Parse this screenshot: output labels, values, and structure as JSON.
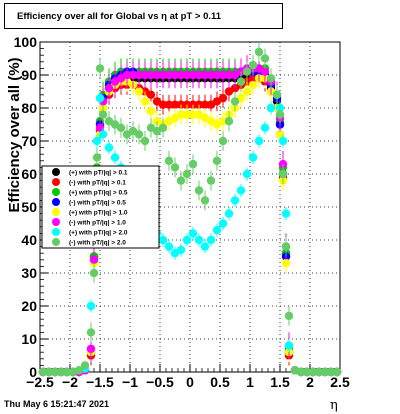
{
  "title": "Efficiency over all for Global vs   η at pT > 0.11",
  "footer": "Thu May  6 15:21:47 2021",
  "chart_data": {
    "type": "scatter",
    "title": "Efficiency over all for Global vs   η at pT > 0.11",
    "xlabel": "η",
    "ylabel": "Efficiency over all (%)",
    "xlim": [
      -2.5,
      2.5
    ],
    "ylim": [
      0,
      100
    ],
    "xticks": [
      "−2.5",
      "−2",
      "−1.5",
      "−1",
      "−0.5",
      "0",
      "0.5",
      "1",
      "1.5",
      "2",
      "2.5"
    ],
    "yticks": [
      "0",
      "10",
      "20",
      "30",
      "40",
      "50",
      "60",
      "70",
      "80",
      "90",
      "100"
    ],
    "grid": true,
    "legend_position": "left-middle",
    "series": [
      {
        "name": "(+) with pT/|q| > 0.1",
        "color": "#000000",
        "x": [
          -2.45,
          -2.35,
          -2.25,
          -2.15,
          -2.05,
          -1.95,
          -1.85,
          -1.75,
          -1.65,
          -1.6,
          -1.55,
          -1.5,
          -1.45,
          -1.35,
          -1.25,
          -1.15,
          -1.05,
          -0.95,
          -0.85,
          -0.75,
          -0.65,
          -0.55,
          -0.45,
          -0.35,
          -0.25,
          -0.15,
          -0.05,
          0.05,
          0.15,
          0.25,
          0.35,
          0.45,
          0.55,
          0.65,
          0.75,
          0.85,
          0.95,
          1.05,
          1.15,
          1.25,
          1.35,
          1.45,
          1.5,
          1.55,
          1.6,
          1.65,
          1.75,
          1.85,
          1.95,
          2.05,
          2.15,
          2.25,
          2.35,
          2.45
        ],
        "y": [
          0,
          0,
          0,
          0,
          0,
          0,
          0,
          0.5,
          6,
          35,
          60,
          75,
          82,
          86,
          88,
          89,
          89,
          89,
          89,
          89,
          89,
          89,
          89,
          89,
          89,
          89,
          89,
          89,
          89,
          89,
          89,
          89,
          89,
          89,
          89,
          89,
          89,
          89,
          89,
          89,
          86,
          82,
          75,
          60,
          36,
          6,
          0.5,
          0,
          0,
          0,
          0,
          0,
          0,
          0
        ]
      },
      {
        "name": "(-) with pT/|q| > 0.1",
        "color": "#ff0000",
        "x": [
          -2.45,
          -2.35,
          -2.25,
          -2.15,
          -2.05,
          -1.95,
          -1.85,
          -1.75,
          -1.65,
          -1.6,
          -1.55,
          -1.5,
          -1.45,
          -1.35,
          -1.25,
          -1.15,
          -1.05,
          -0.95,
          -0.85,
          -0.75,
          -0.65,
          -0.55,
          -0.45,
          -0.35,
          -0.25,
          -0.15,
          -0.05,
          0.05,
          0.15,
          0.25,
          0.35,
          0.45,
          0.55,
          0.65,
          0.75,
          0.85,
          0.95,
          1.05,
          1.15,
          1.25,
          1.35,
          1.45,
          1.5,
          1.55,
          1.6,
          1.65,
          1.75,
          1.85,
          1.95,
          2.05,
          2.15,
          2.25,
          2.35,
          2.45
        ],
        "y": [
          0,
          0,
          0,
          0,
          0,
          0,
          0,
          0.5,
          5,
          35,
          60,
          73,
          80,
          84,
          86,
          87,
          87,
          87,
          86,
          85,
          84,
          82,
          81,
          81,
          81,
          81,
          81,
          81,
          81,
          81,
          81,
          82,
          83,
          85,
          86,
          87,
          88,
          89,
          89,
          88,
          85,
          80,
          72,
          59,
          35,
          5,
          0.5,
          0,
          0,
          0,
          0,
          0,
          0,
          0
        ]
      },
      {
        "name": "(+) with pT/|q| > 0.5",
        "color": "#00cc00",
        "x": [
          -2.45,
          -2.35,
          -2.25,
          -2.15,
          -2.05,
          -1.95,
          -1.85,
          -1.75,
          -1.65,
          -1.6,
          -1.55,
          -1.5,
          -1.45,
          -1.35,
          -1.25,
          -1.15,
          -1.05,
          -0.95,
          -0.85,
          -0.75,
          -0.65,
          -0.55,
          -0.45,
          -0.35,
          -0.25,
          -0.15,
          -0.05,
          0.05,
          0.15,
          0.25,
          0.35,
          0.45,
          0.55,
          0.65,
          0.75,
          0.85,
          0.95,
          1.05,
          1.15,
          1.25,
          1.35,
          1.45,
          1.5,
          1.55,
          1.6,
          1.65,
          1.75,
          1.85,
          1.95,
          2.05,
          2.15,
          2.25,
          2.35,
          2.45
        ],
        "y": [
          0,
          0,
          0,
          0,
          0,
          0,
          0,
          0.5,
          7,
          35,
          62,
          76,
          84,
          88,
          90,
          91,
          91,
          91,
          91,
          91,
          91,
          91,
          91,
          91,
          91,
          91,
          91,
          91,
          91,
          91,
          91,
          91,
          91,
          91,
          91,
          91,
          91,
          91,
          92,
          92,
          88,
          84,
          76,
          62,
          36,
          7,
          0.5,
          0,
          0,
          0,
          0,
          0,
          0,
          0
        ]
      },
      {
        "name": "(-) with pT/|q| > 0.5",
        "color": "#0000ff",
        "x": [
          -2.45,
          -2.35,
          -2.25,
          -2.15,
          -2.05,
          -1.95,
          -1.85,
          -1.75,
          -1.65,
          -1.6,
          -1.55,
          -1.5,
          -1.45,
          -1.35,
          -1.25,
          -1.15,
          -1.05,
          -0.95,
          -0.85,
          -0.75,
          -0.65,
          -0.55,
          -0.45,
          -0.35,
          -0.25,
          -0.15,
          -0.05,
          0.05,
          0.15,
          0.25,
          0.35,
          0.45,
          0.55,
          0.65,
          0.75,
          0.85,
          0.95,
          1.05,
          1.15,
          1.25,
          1.35,
          1.45,
          1.5,
          1.55,
          1.6,
          1.65,
          1.75,
          1.85,
          1.95,
          2.05,
          2.15,
          2.25,
          2.35,
          2.45
        ],
        "y": [
          0,
          0,
          0,
          0,
          0,
          0,
          0,
          0.5,
          6,
          34,
          60,
          75,
          83,
          87,
          89,
          90,
          91,
          91,
          90,
          90,
          90,
          90,
          90,
          90,
          90,
          90,
          90,
          90,
          90,
          90,
          90,
          90,
          90,
          90,
          90,
          91,
          91,
          91,
          91,
          90,
          87,
          83,
          75,
          60,
          35,
          6,
          0.5,
          0,
          0,
          0,
          0,
          0,
          0,
          0
        ]
      },
      {
        "name": "(+) with pT/|q| > 1.0",
        "color": "#ffff00",
        "x": [
          -2.45,
          -2.35,
          -2.25,
          -2.15,
          -2.05,
          -1.95,
          -1.85,
          -1.75,
          -1.65,
          -1.6,
          -1.55,
          -1.5,
          -1.45,
          -1.35,
          -1.25,
          -1.15,
          -1.05,
          -0.95,
          -0.85,
          -0.75,
          -0.65,
          -0.55,
          -0.45,
          -0.35,
          -0.25,
          -0.15,
          -0.05,
          0.05,
          0.15,
          0.25,
          0.35,
          0.45,
          0.55,
          0.65,
          0.75,
          0.85,
          0.95,
          1.05,
          1.15,
          1.25,
          1.35,
          1.45,
          1.5,
          1.55,
          1.6,
          1.65,
          1.75,
          1.85,
          1.95,
          2.05,
          2.15,
          2.25,
          2.35,
          2.45
        ],
        "y": [
          0,
          0,
          0,
          0,
          0,
          0,
          0,
          0.5,
          6,
          33,
          58,
          72,
          80,
          85,
          87,
          88,
          88,
          87,
          85,
          82,
          79,
          76,
          75,
          76,
          77,
          78,
          78,
          78,
          78,
          77,
          76,
          75,
          76,
          78,
          80,
          83,
          85,
          87,
          89,
          89,
          85,
          80,
          72,
          58,
          33,
          6,
          0.5,
          0,
          0,
          0,
          0,
          0,
          0,
          0
        ]
      },
      {
        "name": "(-) with pT/|q| > 1.0",
        "color": "#ff00ff",
        "x": [
          -2.45,
          -2.35,
          -2.25,
          -2.15,
          -2.05,
          -1.95,
          -1.85,
          -1.75,
          -1.65,
          -1.6,
          -1.55,
          -1.5,
          -1.45,
          -1.35,
          -1.25,
          -1.15,
          -1.05,
          -0.95,
          -0.85,
          -0.75,
          -0.65,
          -0.55,
          -0.45,
          -0.35,
          -0.25,
          -0.15,
          -0.05,
          0.05,
          0.15,
          0.25,
          0.35,
          0.45,
          0.55,
          0.65,
          0.75,
          0.85,
          0.95,
          1.05,
          1.15,
          1.25,
          1.35,
          1.45,
          1.5,
          1.55,
          1.6,
          1.65,
          1.75,
          1.85,
          1.95,
          2.05,
          2.15,
          2.25,
          2.35,
          2.45
        ],
        "y": [
          0,
          0,
          0,
          0,
          0,
          0,
          0,
          0.5,
          7,
          34,
          60,
          74,
          82,
          86,
          88,
          89,
          90,
          90,
          90,
          90,
          90,
          90,
          90,
          90,
          90,
          90,
          90,
          90,
          90,
          90,
          90,
          90,
          90,
          90,
          90,
          91,
          92,
          92,
          92,
          91,
          88,
          84,
          77,
          63,
          38,
          8,
          0.5,
          0,
          0,
          0,
          0,
          0,
          0,
          0
        ]
      },
      {
        "name": "(+) with pT/|q| > 2.0",
        "color": "#00ffff",
        "x": [
          -2.45,
          -2.35,
          -2.25,
          -2.15,
          -2.05,
          -1.95,
          -1.85,
          -1.75,
          -1.65,
          -1.6,
          -1.55,
          -1.5,
          -1.45,
          -1.35,
          -1.25,
          -1.15,
          -1.05,
          -0.95,
          -0.85,
          -0.75,
          -0.65,
          -0.55,
          -0.45,
          -0.35,
          -0.25,
          -0.15,
          -0.05,
          0.05,
          0.15,
          0.25,
          0.35,
          0.45,
          0.55,
          0.65,
          0.75,
          0.85,
          0.95,
          1.05,
          1.15,
          1.25,
          1.35,
          1.45,
          1.5,
          1.55,
          1.6,
          1.65,
          1.75,
          1.85,
          1.95,
          2.05,
          2.15,
          2.25,
          2.35,
          2.45
        ],
        "y": [
          0,
          0,
          0,
          0,
          0,
          0,
          0.5,
          1,
          20,
          45,
          70,
          83,
          72,
          68,
          65,
          62,
          60,
          55,
          50,
          47,
          45,
          42,
          40,
          38,
          36,
          37,
          40,
          42,
          40,
          38,
          40,
          43,
          45,
          48,
          52,
          55,
          60,
          65,
          70,
          74,
          80,
          84,
          80,
          70,
          48,
          8,
          0.5,
          0,
          0,
          0,
          0,
          0,
          0,
          0
        ]
      },
      {
        "name": "(-) with pT/|q| > 2.0",
        "color": "#66cc66",
        "x": [
          -2.45,
          -2.35,
          -2.25,
          -2.15,
          -2.05,
          -1.95,
          -1.85,
          -1.75,
          -1.65,
          -1.6,
          -1.55,
          -1.5,
          -1.45,
          -1.35,
          -1.25,
          -1.15,
          -1.05,
          -0.95,
          -0.85,
          -0.75,
          -0.65,
          -0.55,
          -0.45,
          -0.35,
          -0.25,
          -0.15,
          -0.05,
          0.05,
          0.15,
          0.25,
          0.35,
          0.45,
          0.55,
          0.65,
          0.75,
          0.85,
          0.95,
          1.05,
          1.15,
          1.25,
          1.35,
          1.45,
          1.5,
          1.55,
          1.6,
          1.65,
          1.75,
          1.85,
          1.95,
          2.05,
          2.15,
          2.25,
          2.35,
          2.45
        ],
        "y": [
          0,
          0,
          0,
          0,
          0,
          0,
          0.5,
          2,
          12,
          30,
          65,
          92,
          78,
          76,
          75,
          74,
          72,
          73,
          72,
          70,
          74,
          73,
          74,
          64,
          62,
          58,
          60,
          63,
          55,
          52,
          58,
          64,
          70,
          76,
          82,
          88,
          91,
          93,
          97,
          95,
          89,
          84,
          78,
          60,
          38,
          17,
          0.5,
          0,
          0,
          0,
          0,
          0,
          0,
          0
        ]
      }
    ]
  }
}
